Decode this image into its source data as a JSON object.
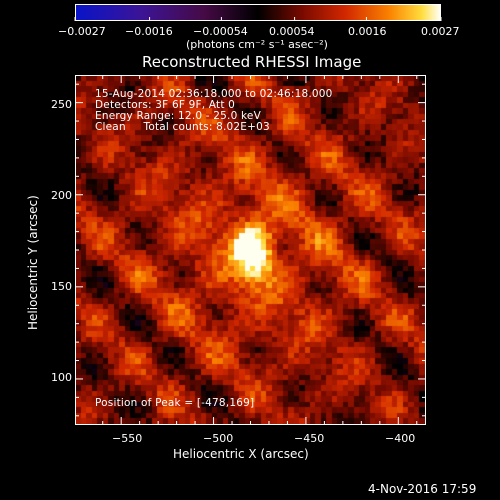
{
  "chart_data": {
    "type": "heatmap",
    "title": "Reconstructed RHESSI Image",
    "xlabel": "Heliocentric X (arcsec)",
    "ylabel": "Heliocentric Y (arcsec)",
    "xlim": [
      -575,
      -385
    ],
    "ylim": [
      75,
      265
    ],
    "xticks": [
      -550,
      -500,
      -450,
      -400
    ],
    "xtick_labels": [
      "−550",
      "−500",
      "−450",
      "−400"
    ],
    "yticks": [
      100,
      150,
      200,
      250
    ],
    "ytick_labels": [
      "100",
      "150",
      "200",
      "250"
    ],
    "colormap": "black-purple-red-yellow-white",
    "colorbar": {
      "min": -0.0027,
      "max": 0.0027,
      "ticks": [
        -0.0027,
        -0.0016,
        -0.00054,
        0.00054,
        0.0016,
        0.0027
      ],
      "tick_labels": [
        "−0.0027",
        "−0.0016",
        "−0.00054",
        "0.00054",
        "0.0016",
        "0.0027"
      ],
      "unit_label": "(photons cm⁻² s⁻¹ asec⁻²)"
    },
    "peak": {
      "x": -478,
      "y": 169
    },
    "annotations": [
      "15-Aug-2014 02:36:18.000 to 02:46:18.000",
      "Detectors: 3F 6F 9F, Att 0",
      "Energy Range: 12.0 - 25.0 keV",
      "Clean     Total counts: 8.02E+03"
    ],
    "peak_label": "Position of Peak = [-478,169]",
    "grid": false
  },
  "footer": {
    "date": "4-Nov-2016 17:59"
  }
}
